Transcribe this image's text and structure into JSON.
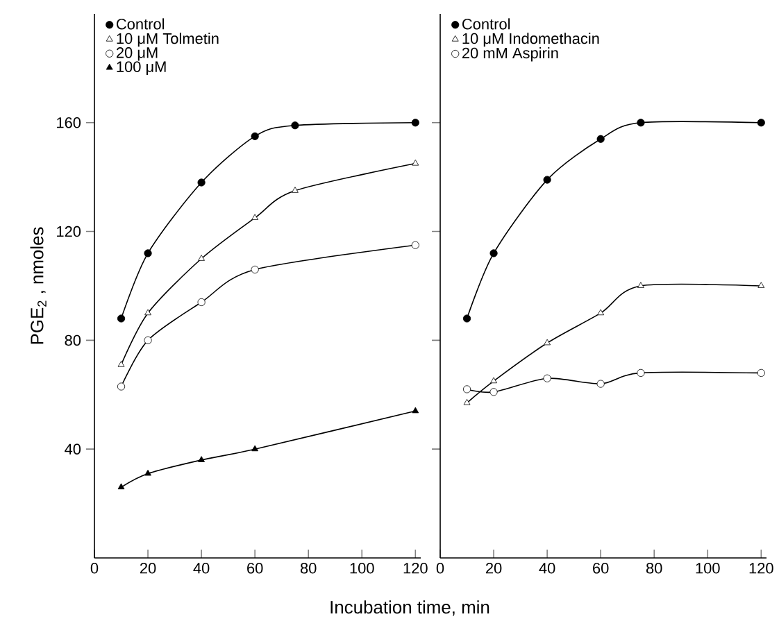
{
  "chart_data": [
    {
      "type": "line",
      "xlabel": "Incubation time,  min",
      "ylabel": "PGE$_{2}$ ,   nmoles",
      "xlim": [
        0,
        122
      ],
      "ylim": [
        0,
        200
      ],
      "xticks": [
        0,
        20,
        40,
        60,
        80,
        100,
        120
      ],
      "yticks": [
        40,
        80,
        120,
        160
      ],
      "legend": "top left",
      "line_style": "solid",
      "series": [
        {
          "name": "Control",
          "color": "#000000",
          "marker": "circle",
          "x": [
            10,
            20,
            40,
            60,
            75,
            120
          ],
          "values": [
            88,
            112,
            138,
            155,
            159,
            160
          ]
        },
        {
          "name": "10 μM Tolmetin",
          "color": "#000000",
          "colors": [
            "#ffffff",
            "#ffffff",
            "#ffffff",
            "#ffffff",
            "#ffffff",
            "#ffffff"
          ],
          "marker": "triangle",
          "x": [
            10,
            20,
            40,
            60,
            75,
            120
          ],
          "values": [
            71,
            90,
            110,
            125,
            135,
            145
          ]
        },
        {
          "name": "20 μM",
          "color": "#000000",
          "colors": [
            "#ffffff",
            "#ffffff",
            "#ffffff",
            "#ffffff",
            "#ffffff"
          ],
          "marker": "circle",
          "x": [
            10,
            20,
            40,
            60,
            120
          ],
          "values": [
            63,
            80,
            94,
            106,
            115
          ]
        },
        {
          "name": "100 μM",
          "color": "#000000",
          "marker": "triangle",
          "x": [
            10,
            20,
            40,
            60,
            120
          ],
          "values": [
            26,
            31,
            36,
            40,
            54
          ]
        }
      ]
    },
    {
      "type": "line",
      "xlim": [
        0,
        122
      ],
      "ylim": [
        0,
        200
      ],
      "xticks": [
        0,
        20,
        40,
        60,
        80,
        100,
        120
      ],
      "yticks": [
        {
          "value": 40,
          "label": null
        },
        {
          "value": 80,
          "label": null
        },
        {
          "value": 120,
          "label": null
        },
        {
          "value": 160,
          "label": null
        }
      ],
      "tick_labels": "x",
      "legend": "top left",
      "line_style": "solid",
      "series": [
        {
          "name": "Control",
          "color": "#000000",
          "marker": "circle",
          "x": [
            10,
            20,
            40,
            60,
            75,
            120
          ],
          "values": [
            88,
            112,
            139,
            154,
            160,
            160
          ]
        },
        {
          "name": "10 μM Indomethacin",
          "color": "#000000",
          "colors": [
            "#ffffff",
            "#ffffff",
            "#ffffff",
            "#ffffff",
            "#ffffff",
            "#ffffff"
          ],
          "marker": "triangle",
          "x": [
            10,
            20,
            40,
            60,
            75,
            120
          ],
          "values": [
            57,
            65,
            79,
            90,
            100,
            100
          ]
        },
        {
          "name": "20 mM Aspirin",
          "color": "#000000",
          "colors": [
            "#ffffff",
            "#ffffff",
            "#ffffff",
            "#ffffff",
            "#ffffff",
            "#ffffff"
          ],
          "marker": "circle",
          "x": [
            10,
            20,
            40,
            60,
            75,
            120
          ],
          "values": [
            62,
            61,
            66,
            64,
            68,
            68
          ]
        }
      ]
    }
  ]
}
